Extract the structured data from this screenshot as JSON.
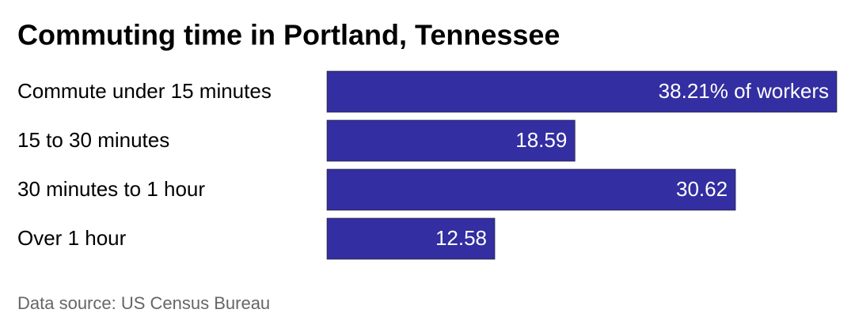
{
  "chart_data": {
    "type": "bar",
    "orientation": "horizontal",
    "title": "Commuting time in Portland, Tennessee",
    "categories": [
      "Commute under 15 minutes",
      "15 to 30 minutes",
      "30 minutes to 1 hour",
      "Over 1 hour"
    ],
    "values": [
      38.21,
      18.59,
      30.62,
      12.58
    ],
    "value_labels": [
      "38.21% of workers",
      "18.59",
      "30.62",
      "12.58"
    ],
    "color": "#332ea1",
    "source": "Data source: US Census Bureau"
  }
}
